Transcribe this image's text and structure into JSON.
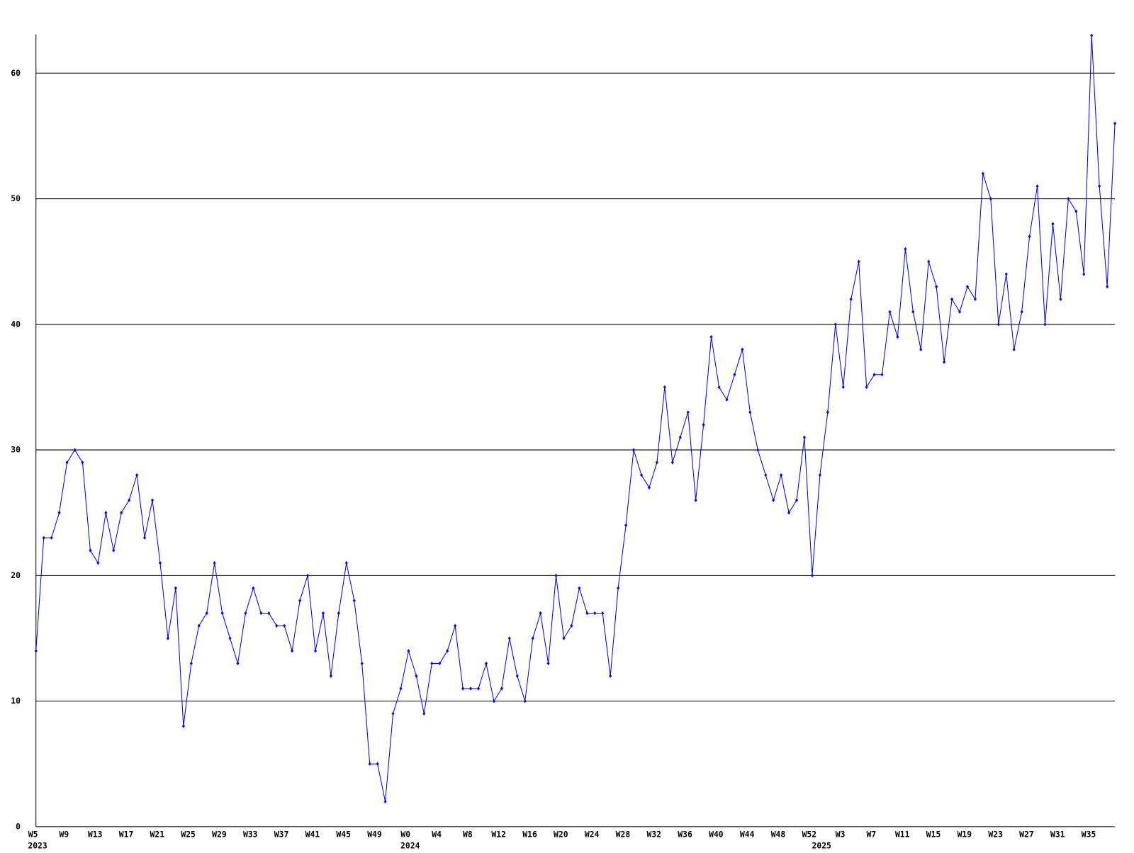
{
  "chart_data": {
    "type": "line",
    "categories": [
      "W5",
      null,
      null,
      null,
      "W9",
      null,
      null,
      null,
      "W13",
      null,
      null,
      null,
      "W17",
      null,
      null,
      null,
      "W21",
      null,
      null,
      null,
      "W25",
      null,
      null,
      null,
      "W29",
      null,
      null,
      null,
      "W33",
      null,
      null,
      null,
      "W37",
      null,
      null,
      null,
      "W41",
      null,
      null,
      null,
      "W45",
      null,
      null,
      null,
      "W49",
      null,
      null,
      null,
      "W0",
      null,
      null,
      null,
      "W4",
      null,
      null,
      null,
      "W8",
      null,
      null,
      null,
      "W12",
      null,
      null,
      null,
      "W16",
      null,
      null,
      null,
      "W20",
      null,
      null,
      null,
      "W24",
      null,
      null,
      null,
      "W28",
      null,
      null,
      null,
      "W32",
      null,
      null,
      null,
      "W36",
      null,
      null,
      null,
      "W40",
      null,
      null,
      null,
      "W44",
      null,
      null,
      null,
      "W48",
      null,
      null,
      null,
      "W52",
      null,
      null,
      null,
      "W3",
      null,
      null,
      null,
      "W7",
      null,
      null,
      null,
      "W11",
      null,
      null,
      null,
      "W15",
      null,
      null,
      null,
      "W19",
      null,
      null,
      null,
      "W23",
      null,
      null,
      null,
      "W27",
      null,
      null,
      null,
      "W31",
      null,
      null,
      null,
      "W35",
      null,
      null,
      null
    ],
    "years": [
      {
        "label": "2023",
        "at": 0
      },
      {
        "label": "2024",
        "at": 48
      },
      {
        "label": "2025",
        "at": 101
      }
    ],
    "series": [
      {
        "color": "#0000ff",
        "values": [
          14,
          23,
          23,
          25,
          29,
          30,
          29,
          22,
          21,
          25,
          22,
          25,
          26,
          28,
          23,
          26,
          21,
          15,
          19,
          8,
          13,
          16,
          17,
          21,
          17,
          15,
          13,
          17,
          19,
          17,
          17,
          16,
          16,
          14,
          18,
          20,
          14,
          17,
          12,
          17,
          21,
          18,
          13,
          5,
          5,
          2,
          9,
          11,
          14,
          12,
          9,
          13,
          13,
          14,
          16,
          11,
          11,
          11,
          13,
          10,
          11,
          15,
          12,
          10,
          15,
          17,
          13,
          20,
          15,
          16,
          19,
          17,
          17,
          17,
          12,
          19,
          24,
          30,
          28,
          27,
          29,
          35,
          29,
          31,
          33,
          26,
          32,
          39,
          35,
          34,
          36,
          38,
          33,
          30,
          28,
          26,
          28,
          25,
          26,
          31,
          20,
          28,
          33,
          40,
          35,
          42,
          45,
          35,
          36,
          36,
          41,
          39,
          46,
          41,
          38,
          45,
          43,
          37,
          42,
          41,
          43,
          42,
          52,
          50,
          40,
          44,
          38,
          41,
          47,
          51,
          40,
          48,
          42,
          50,
          49,
          44,
          63,
          51,
          43,
          56
        ]
      }
    ],
    "ylim": [
      0,
      63
    ],
    "yticks": [
      0,
      10,
      20,
      30,
      40,
      50,
      60
    ],
    "grid": true
  }
}
